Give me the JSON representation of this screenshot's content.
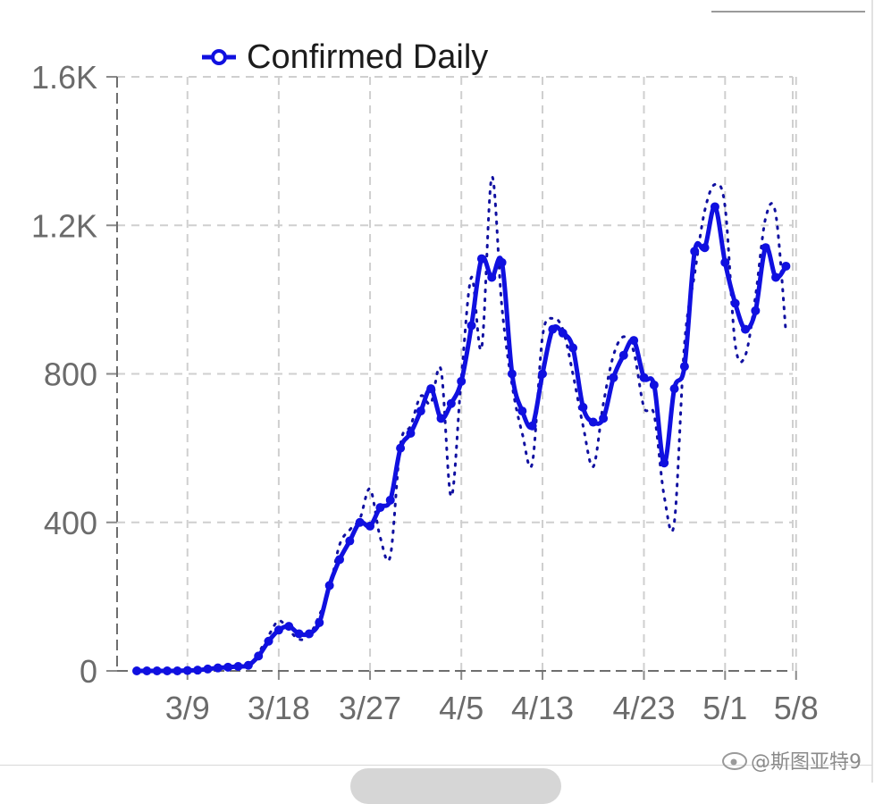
{
  "chart_data": {
    "type": "line",
    "title": "",
    "xlabel": "",
    "ylabel": "",
    "ylim": [
      0,
      1600
    ],
    "y_ticks": [
      0,
      400,
      800,
      1200,
      1600
    ],
    "y_tick_labels": [
      "0",
      "400",
      "800",
      "1.2K",
      "1.6K"
    ],
    "x_tick_labels": [
      "3/9",
      "3/18",
      "3/27",
      "4/5",
      "4/13",
      "4/23",
      "5/1",
      "5/8"
    ],
    "x_tick_positions": [
      5,
      14,
      23,
      32,
      40,
      50,
      58,
      65
    ],
    "x_range": [
      0,
      65
    ],
    "grid": true,
    "legend": "top-left",
    "series": [
      {
        "name": "Confirmed Daily",
        "color": "#1010e0",
        "marker": "circle",
        "smoothed": true,
        "values": [
          0,
          0,
          0,
          0,
          0,
          1,
          2,
          5,
          8,
          10,
          12,
          15,
          40,
          80,
          110,
          120,
          100,
          100,
          130,
          230,
          300,
          350,
          400,
          390,
          440,
          460,
          600,
          640,
          700,
          760,
          680,
          720,
          780,
          930,
          1110,
          1060,
          1100,
          800,
          700,
          660,
          800,
          920,
          910,
          870,
          710,
          670,
          680,
          790,
          850,
          890,
          790,
          770,
          560,
          760,
          820,
          1130,
          1140,
          1250,
          1100,
          990,
          920,
          970,
          1140,
          1060,
          1090
        ]
      },
      {
        "name": "",
        "color": "#1010a0",
        "style": "dotted",
        "values": [
          0,
          0,
          0,
          0,
          0,
          2,
          3,
          6,
          10,
          11,
          14,
          12,
          48,
          95,
          135,
          110,
          85,
          95,
          150,
          220,
          340,
          380,
          410,
          490,
          360,
          310,
          610,
          660,
          740,
          720,
          810,
          470,
          790,
          1060,
          870,
          1330,
          980,
          770,
          640,
          560,
          900,
          950,
          920,
          800,
          660,
          550,
          720,
          850,
          900,
          860,
          710,
          690,
          470,
          400,
          880,
          1070,
          1240,
          1310,
          1250,
          880,
          850,
          1010,
          1220,
          1230,
          910
        ]
      }
    ]
  },
  "watermark_text": "@斯图亚特9"
}
